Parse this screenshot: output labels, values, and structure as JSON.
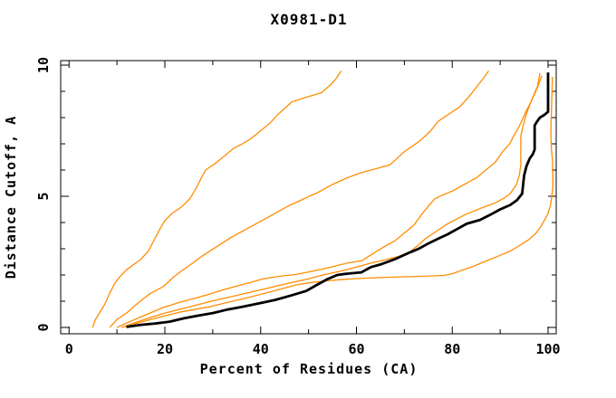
{
  "chart_data": {
    "type": "line",
    "title": "X0981-D1",
    "xlabel": "Percent of Residues (CA)",
    "ylabel": "Distance Cutoff, A",
    "xlim": [
      0,
      100
    ],
    "ylim": [
      0,
      10
    ],
    "x_ticks_labeled": [
      0,
      20,
      40,
      60,
      80,
      100
    ],
    "x_tick_step": 10,
    "y_ticks_labeled": [
      0,
      5,
      10
    ],
    "y_tick_step": 1,
    "grid": false,
    "legend": "none",
    "colors": {
      "model_curve": "#ff8c00",
      "main_curve": "#000000"
    },
    "series": [
      {
        "name": "orange-curve-1",
        "color": "#ff8c00",
        "width": 1.3,
        "points": [
          [
            4.9,
            0.0
          ],
          [
            5.5,
            0.3
          ],
          [
            6.5,
            0.6
          ],
          [
            7.5,
            0.9
          ],
          [
            8.6,
            1.35
          ],
          [
            9.6,
            1.7
          ],
          [
            10.7,
            1.95
          ],
          [
            12,
            2.2
          ],
          [
            13.5,
            2.4
          ],
          [
            15,
            2.6
          ],
          [
            16.5,
            2.9
          ],
          [
            17.8,
            3.35
          ],
          [
            18.8,
            3.7
          ],
          [
            19.9,
            4.05
          ],
          [
            21.5,
            4.35
          ],
          [
            23.5,
            4.6
          ],
          [
            25.2,
            4.9
          ],
          [
            26.5,
            5.3
          ],
          [
            27.6,
            5.7
          ],
          [
            28.5,
            6.0
          ],
          [
            30.5,
            6.25
          ],
          [
            32.5,
            6.55
          ],
          [
            34.5,
            6.85
          ],
          [
            36.2,
            7.0
          ],
          [
            38,
            7.2
          ],
          [
            40,
            7.5
          ],
          [
            42,
            7.8
          ],
          [
            43.5,
            8.1
          ],
          [
            45,
            8.35
          ],
          [
            46.5,
            8.6
          ],
          [
            48.2,
            8.7
          ],
          [
            50.3,
            8.82
          ],
          [
            52.7,
            8.95
          ],
          [
            54.6,
            9.25
          ],
          [
            55.8,
            9.5
          ],
          [
            56.8,
            9.78
          ]
        ]
      },
      {
        "name": "orange-curve-2",
        "color": "#ff8c00",
        "width": 1.3,
        "points": [
          [
            8.5,
            0.0
          ],
          [
            10,
            0.3
          ],
          [
            12,
            0.55
          ],
          [
            14.5,
            0.95
          ],
          [
            17,
            1.3
          ],
          [
            19.6,
            1.55
          ],
          [
            22,
            1.95
          ],
          [
            25,
            2.35
          ],
          [
            28,
            2.75
          ],
          [
            31,
            3.1
          ],
          [
            34,
            3.45
          ],
          [
            37,
            3.75
          ],
          [
            40,
            4.05
          ],
          [
            43,
            4.35
          ],
          [
            46,
            4.65
          ],
          [
            49,
            4.9
          ],
          [
            52,
            5.15
          ],
          [
            55,
            5.45
          ],
          [
            58,
            5.7
          ],
          [
            61,
            5.9
          ],
          [
            64,
            6.05
          ],
          [
            67,
            6.2
          ],
          [
            70,
            6.7
          ],
          [
            72,
            6.95
          ],
          [
            73.5,
            7.15
          ],
          [
            75.5,
            7.5
          ],
          [
            77,
            7.85
          ],
          [
            79,
            8.1
          ],
          [
            81.5,
            8.4
          ],
          [
            83.5,
            8.8
          ],
          [
            85,
            9.15
          ],
          [
            86.5,
            9.5
          ],
          [
            87.6,
            9.78
          ]
        ]
      },
      {
        "name": "orange-curve-3",
        "color": "#ff8c00",
        "width": 1.3,
        "points": [
          [
            10,
            0.0
          ],
          [
            13,
            0.25
          ],
          [
            16,
            0.48
          ],
          [
            19.6,
            0.76
          ],
          [
            23,
            0.95
          ],
          [
            26,
            1.1
          ],
          [
            29,
            1.25
          ],
          [
            32,
            1.42
          ],
          [
            35,
            1.58
          ],
          [
            38,
            1.72
          ],
          [
            40.4,
            1.85
          ],
          [
            44,
            1.95
          ],
          [
            47.4,
            2.02
          ],
          [
            51,
            2.15
          ],
          [
            54.9,
            2.31
          ],
          [
            58,
            2.45
          ],
          [
            61.2,
            2.55
          ],
          [
            63.7,
            2.85
          ],
          [
            66,
            3.1
          ],
          [
            68,
            3.3
          ],
          [
            70,
            3.6
          ],
          [
            72,
            3.9
          ],
          [
            74,
            4.4
          ],
          [
            76.3,
            4.9
          ],
          [
            78,
            5.05
          ],
          [
            80,
            5.2
          ],
          [
            82.5,
            5.45
          ],
          [
            85,
            5.7
          ],
          [
            87,
            6.0
          ],
          [
            89,
            6.3
          ],
          [
            90.5,
            6.7
          ],
          [
            92,
            7.0
          ],
          [
            92.8,
            7.3
          ],
          [
            93.8,
            7.6
          ],
          [
            94.6,
            7.9
          ],
          [
            95.3,
            8.2
          ],
          [
            96.3,
            8.55
          ],
          [
            97.3,
            8.95
          ],
          [
            98,
            9.25
          ],
          [
            98.7,
            9.6
          ]
        ]
      },
      {
        "name": "orange-curve-4",
        "color": "#ff8c00",
        "width": 1.3,
        "points": [
          [
            11,
            0.0
          ],
          [
            14,
            0.2
          ],
          [
            17,
            0.38
          ],
          [
            20,
            0.55
          ],
          [
            25,
            0.78
          ],
          [
            29.7,
            1.0
          ],
          [
            35,
            1.22
          ],
          [
            40.4,
            1.45
          ],
          [
            45,
            1.65
          ],
          [
            49.9,
            1.85
          ],
          [
            53,
            2.0
          ],
          [
            56.8,
            2.15
          ],
          [
            60,
            2.3
          ],
          [
            63,
            2.45
          ],
          [
            66,
            2.58
          ],
          [
            69,
            2.72
          ],
          [
            71.3,
            2.9
          ],
          [
            73,
            3.15
          ],
          [
            74.5,
            3.4
          ],
          [
            76.3,
            3.62
          ],
          [
            79,
            3.95
          ],
          [
            82.7,
            4.3
          ],
          [
            86,
            4.55
          ],
          [
            89,
            4.75
          ],
          [
            91,
            4.95
          ],
          [
            92.1,
            5.1
          ],
          [
            93.4,
            5.45
          ],
          [
            94,
            5.8
          ],
          [
            94.3,
            6.2
          ],
          [
            94.3,
            7.3
          ],
          [
            94.8,
            7.7
          ],
          [
            95.4,
            8.1
          ],
          [
            96.2,
            8.5
          ],
          [
            97,
            8.85
          ],
          [
            97.8,
            9.2
          ],
          [
            98.3,
            9.7
          ]
        ]
      },
      {
        "name": "orange-curve-5",
        "color": "#ff8c00",
        "width": 1.3,
        "points": [
          [
            11.8,
            0.0
          ],
          [
            14,
            0.15
          ],
          [
            17,
            0.3
          ],
          [
            19.6,
            0.42
          ],
          [
            23,
            0.58
          ],
          [
            26,
            0.68
          ],
          [
            29.7,
            0.8
          ],
          [
            33,
            0.95
          ],
          [
            36,
            1.08
          ],
          [
            40.4,
            1.28
          ],
          [
            44,
            1.45
          ],
          [
            47.4,
            1.62
          ],
          [
            50,
            1.7
          ],
          [
            54,
            1.78
          ],
          [
            58,
            1.84
          ],
          [
            62,
            1.88
          ],
          [
            66,
            1.91
          ],
          [
            70,
            1.93
          ],
          [
            74,
            1.95
          ],
          [
            78,
            1.98
          ],
          [
            80,
            2.05
          ],
          [
            82,
            2.18
          ],
          [
            84,
            2.3
          ],
          [
            86,
            2.45
          ],
          [
            88,
            2.6
          ],
          [
            90,
            2.75
          ],
          [
            92,
            2.9
          ],
          [
            94,
            3.12
          ],
          [
            96,
            3.35
          ],
          [
            97.5,
            3.6
          ],
          [
            98.5,
            3.85
          ],
          [
            99.3,
            4.1
          ],
          [
            100,
            4.35
          ],
          [
            100.5,
            4.65
          ],
          [
            100.8,
            5.0
          ],
          [
            101,
            5.4
          ],
          [
            101,
            5.9
          ],
          [
            100.9,
            6.4
          ],
          [
            100.7,
            6.8
          ],
          [
            100.6,
            7.2
          ],
          [
            100.6,
            7.7
          ],
          [
            100.7,
            8.2
          ],
          [
            100.8,
            8.8
          ],
          [
            100.9,
            9.55
          ]
        ]
      },
      {
        "name": "black-main-curve",
        "color": "#000000",
        "width": 2.8,
        "points": [
          [
            12,
            0.02
          ],
          [
            15,
            0.1
          ],
          [
            18,
            0.15
          ],
          [
            21,
            0.22
          ],
          [
            24,
            0.35
          ],
          [
            27,
            0.45
          ],
          [
            30,
            0.55
          ],
          [
            33,
            0.68
          ],
          [
            36,
            0.78
          ],
          [
            40,
            0.93
          ],
          [
            43,
            1.05
          ],
          [
            46,
            1.2
          ],
          [
            49.5,
            1.39
          ],
          [
            51.5,
            1.6
          ],
          [
            54,
            1.85
          ],
          [
            56,
            2.0
          ],
          [
            58,
            2.05
          ],
          [
            61,
            2.1
          ],
          [
            63,
            2.3
          ],
          [
            65,
            2.4
          ],
          [
            68,
            2.6
          ],
          [
            71,
            2.85
          ],
          [
            73,
            3.0
          ],
          [
            75,
            3.2
          ],
          [
            77,
            3.38
          ],
          [
            79,
            3.55
          ],
          [
            81,
            3.75
          ],
          [
            83,
            3.95
          ],
          [
            85.8,
            4.1
          ],
          [
            88,
            4.3
          ],
          [
            90,
            4.5
          ],
          [
            92.1,
            4.67
          ],
          [
            93.5,
            4.85
          ],
          [
            94.6,
            5.1
          ],
          [
            94.8,
            5.45
          ],
          [
            95,
            5.8
          ],
          [
            95.5,
            6.15
          ],
          [
            96.2,
            6.45
          ],
          [
            96.8,
            6.6
          ],
          [
            97.2,
            6.78
          ],
          [
            97.2,
            7.7
          ],
          [
            97.7,
            7.85
          ],
          [
            98.3,
            8.0
          ],
          [
            99.2,
            8.1
          ],
          [
            100,
            8.22
          ],
          [
            100,
            9.72
          ]
        ]
      }
    ]
  }
}
